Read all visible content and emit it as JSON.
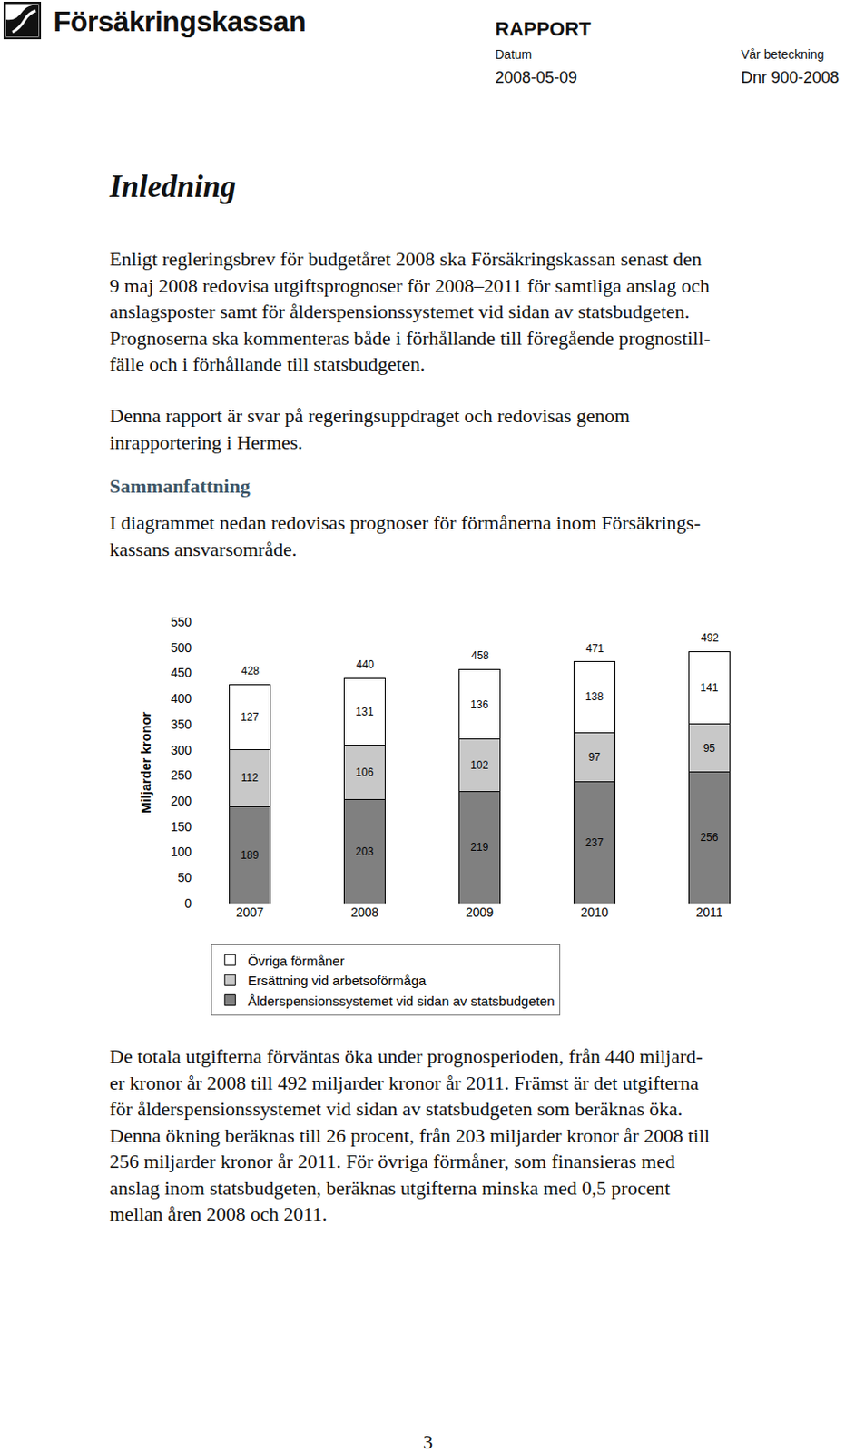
{
  "header": {
    "logo": "Försäkringskassan",
    "doc_type": "RAPPORT",
    "date_label": "Datum",
    "date": "2008-05-09",
    "ref_label": "Vår beteckning",
    "ref": "Dnr 900-2008"
  },
  "heading": "Inledning",
  "intro": [
    [
      "Enligt regleringsbrev för budgetåret 2008 ska Försäkringskassan senast den",
      "9 maj 2008 redovisa utgiftsprognoser för 2008–2011 för samtliga anslag och",
      "anslagsposter samt för ålderspensionssystemet vid sidan av statsbudgeten.",
      "Prognoserna ska kommenteras både i förhållande till föregående prognostill-",
      "fälle och i förhållande till statsbudgeten."
    ],
    [
      "Denna rapport är svar på regeringsuppdraget och redovisas genom",
      "inrapportering i Hermes."
    ]
  ],
  "section_title": "Sammanfattning",
  "section_intro": [
    "I diagrammet nedan redovisas prognoser för förmånerna inom Försäkrings-",
    "kassans ansvarsområde."
  ],
  "chart_data": {
    "type": "bar",
    "stacked": true,
    "data_labels": true,
    "grid": false,
    "legend": "bottom",
    "y_label": "Miljarder kronor",
    "categories": [
      "2007",
      "2008",
      "2009",
      "2010",
      "2011"
    ],
    "series": [
      {
        "name": "Ålderspensionssystemet vid sidan av statsbudgeten",
        "color": "#808080",
        "values": [
          189,
          203,
          219,
          237,
          256
        ]
      },
      {
        "name": "Ersättning vid arbetsoförmåga",
        "color": "#c8c8c8",
        "values": [
          112,
          106,
          102,
          97,
          95
        ]
      },
      {
        "name": "Övriga förmåner",
        "color": "#ffffff",
        "values": [
          127,
          131,
          136,
          138,
          141
        ]
      }
    ],
    "totals": [
      428,
      440,
      458,
      471,
      492
    ],
    "ylim": [
      0,
      550
    ],
    "yticks": [
      0,
      50,
      100,
      150,
      200,
      250,
      300,
      350,
      400,
      450,
      500,
      550
    ]
  },
  "conclusion": [
    "De totala utgifterna förväntas öka under prognosperioden, från 440 miljard-",
    "er kronor år 2008 till 492 miljarder kronor år 2011. Främst är det utgifterna",
    "för ålderspensionssystemet vid sidan av statsbudgeten som beräknas öka.",
    "Denna ökning beräknas till 26 procent, från 203 miljarder kronor år 2008 till",
    "256 miljarder kronor år 2011. För övriga förmåner, som finansieras med",
    "anslag inom statsbudgeten, beräknas utgifterna minska med 0,5 procent",
    "mellan åren 2008 och 2011."
  ],
  "page_number": 3
}
